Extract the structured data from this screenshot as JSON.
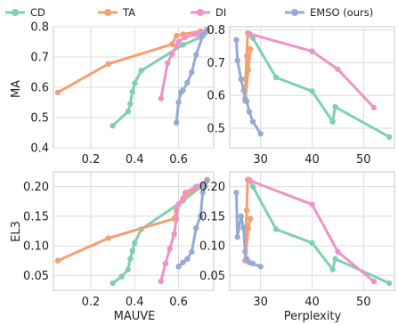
{
  "colors": {
    "CD": "#7fd0b0",
    "TA": "#f5a072",
    "DI": "#ee93c9",
    "EMSO": "#96aad3"
  },
  "legend": [
    {
      "key": "CD",
      "label": "CD"
    },
    {
      "key": "TA",
      "label": "TA"
    },
    {
      "key": "DI",
      "label": "DI"
    },
    {
      "key": "EMSO",
      "label": "EMSO (ours)"
    }
  ],
  "axes": {
    "xlabel_left": "MAUVE",
    "xlabel_right": "Perplexity",
    "ylabel_top": "MA",
    "ylabel_bottom": "EL3"
  },
  "chart_data": [
    {
      "type": "line",
      "panel": "top-left",
      "xlabel": "",
      "ylabel": "MA",
      "xlim": [
        0.03,
        0.76
      ],
      "ylim": [
        0.4,
        0.8
      ],
      "xticks": [
        "0.2",
        "0.4",
        "0.6"
      ],
      "yticks": [
        "0.4",
        "0.5",
        "0.6",
        "0.7",
        "0.8"
      ],
      "series": [
        {
          "key": "CD",
          "x": [
            0.3,
            0.37,
            0.38,
            0.39,
            0.4,
            0.43,
            0.62,
            0.7,
            0.72,
            0.73
          ],
          "y": [
            0.473,
            0.52,
            0.545,
            0.585,
            0.613,
            0.655,
            0.74,
            0.765,
            0.78,
            0.785
          ]
        },
        {
          "key": "TA",
          "x": [
            0.05,
            0.28,
            0.57,
            0.59,
            0.62,
            0.7,
            0.73
          ],
          "y": [
            0.583,
            0.677,
            0.742,
            0.77,
            0.775,
            0.785,
            0.79
          ]
        },
        {
          "key": "DI",
          "x": [
            0.52,
            0.55,
            0.57,
            0.59,
            0.6,
            0.63,
            0.68,
            0.71,
            0.73
          ],
          "y": [
            0.563,
            0.68,
            0.71,
            0.735,
            0.75,
            0.765,
            0.775,
            0.782,
            0.788
          ]
        },
        {
          "key": "EMSO",
          "x": [
            0.59,
            0.6,
            0.61,
            0.62,
            0.64,
            0.66,
            0.68,
            0.71,
            0.73
          ],
          "y": [
            0.483,
            0.55,
            0.583,
            0.59,
            0.615,
            0.65,
            0.707,
            0.77,
            0.79
          ]
        }
      ]
    },
    {
      "type": "line",
      "panel": "top-right",
      "xlabel": "",
      "ylabel": "",
      "xlim": [
        24.0,
        56.0
      ],
      "ylim": [
        0.44,
        0.81
      ],
      "xticks": [
        "30",
        "40",
        "50"
      ],
      "yticks": [
        "0.5",
        "0.6",
        "0.7",
        "0.8"
      ],
      "series": [
        {
          "key": "CD",
          "x": [
            27.8,
            28.5,
            33.0,
            40.0,
            44.0,
            44.5,
            55.0
          ],
          "y": [
            0.785,
            0.775,
            0.655,
            0.613,
            0.52,
            0.565,
            0.473
          ]
        },
        {
          "key": "TA",
          "x": [
            27.5,
            27.3,
            27.1,
            27.0,
            27.6,
            28.0
          ],
          "y": [
            0.79,
            0.72,
            0.65,
            0.583,
            0.677,
            0.742
          ]
        },
        {
          "key": "DI",
          "x": [
            27.9,
            40.0,
            45.0,
            52.0
          ],
          "y": [
            0.788,
            0.735,
            0.68,
            0.563
          ]
        },
        {
          "key": "EMSO",
          "x": [
            25.3,
            25.5,
            26.2,
            26.7,
            27.0,
            27.3,
            27.8,
            28.5,
            30.0
          ],
          "y": [
            0.77,
            0.707,
            0.65,
            0.615,
            0.59,
            0.583,
            0.55,
            0.52,
            0.483
          ]
        }
      ]
    },
    {
      "type": "line",
      "panel": "bottom-left",
      "xlabel": "MAUVE",
      "ylabel": "EL3",
      "xlim": [
        0.03,
        0.76
      ],
      "ylim": [
        0.025,
        0.225
      ],
      "xticks": [
        "0.2",
        "0.4",
        "0.6"
      ],
      "yticks": [
        "0.05",
        "0.10",
        "0.15",
        "0.20"
      ],
      "series": [
        {
          "key": "CD",
          "x": [
            0.3,
            0.34,
            0.37,
            0.38,
            0.39,
            0.4,
            0.43,
            0.62,
            0.72,
            0.73
          ],
          "y": [
            0.037,
            0.048,
            0.06,
            0.078,
            0.092,
            0.105,
            0.128,
            0.176,
            0.205,
            0.212
          ]
        },
        {
          "key": "TA",
          "x": [
            0.05,
            0.28,
            0.58,
            0.59,
            0.62,
            0.66,
            0.73
          ],
          "y": [
            0.075,
            0.113,
            0.146,
            0.16,
            0.18,
            0.193,
            0.212
          ]
        },
        {
          "key": "DI",
          "x": [
            0.52,
            0.54,
            0.56,
            0.58,
            0.59,
            0.6,
            0.63,
            0.68,
            0.73
          ],
          "y": [
            0.04,
            0.07,
            0.095,
            0.12,
            0.145,
            0.17,
            0.19,
            0.2,
            0.21
          ]
        },
        {
          "key": "EMSO",
          "x": [
            0.6,
            0.62,
            0.64,
            0.66,
            0.68,
            0.7,
            0.71,
            0.72,
            0.73
          ],
          "y": [
            0.065,
            0.072,
            0.078,
            0.09,
            0.13,
            0.15,
            0.19,
            0.2,
            0.21
          ]
        }
      ]
    },
    {
      "type": "line",
      "panel": "bottom-right",
      "xlabel": "Perplexity",
      "ylabel": "",
      "xlim": [
        24.0,
        56.0
      ],
      "ylim": [
        0.025,
        0.225
      ],
      "xticks": [
        "30",
        "40",
        "50"
      ],
      "yticks": [
        "0.05",
        "0.10",
        "0.15",
        "0.20"
      ],
      "series": [
        {
          "key": "CD",
          "x": [
            27.8,
            28.5,
            33.0,
            40.0,
            44.0,
            44.5,
            55.0
          ],
          "y": [
            0.212,
            0.2,
            0.128,
            0.105,
            0.06,
            0.078,
            0.037
          ]
        },
        {
          "key": "TA",
          "x": [
            27.5,
            27.3,
            27.1,
            27.0,
            27.6,
            28.0
          ],
          "y": [
            0.212,
            0.16,
            0.113,
            0.075,
            0.13,
            0.146
          ]
        },
        {
          "key": "DI",
          "x": [
            28.0,
            40.0,
            45.0,
            52.0
          ],
          "y": [
            0.21,
            0.17,
            0.09,
            0.04
          ]
        },
        {
          "key": "EMSO",
          "x": [
            25.3,
            25.5,
            26.2,
            26.7,
            27.0,
            27.3,
            27.8,
            28.5,
            30.0
          ],
          "y": [
            0.19,
            0.115,
            0.15,
            0.13,
            0.09,
            0.078,
            0.072,
            0.07,
            0.065
          ]
        }
      ]
    }
  ]
}
